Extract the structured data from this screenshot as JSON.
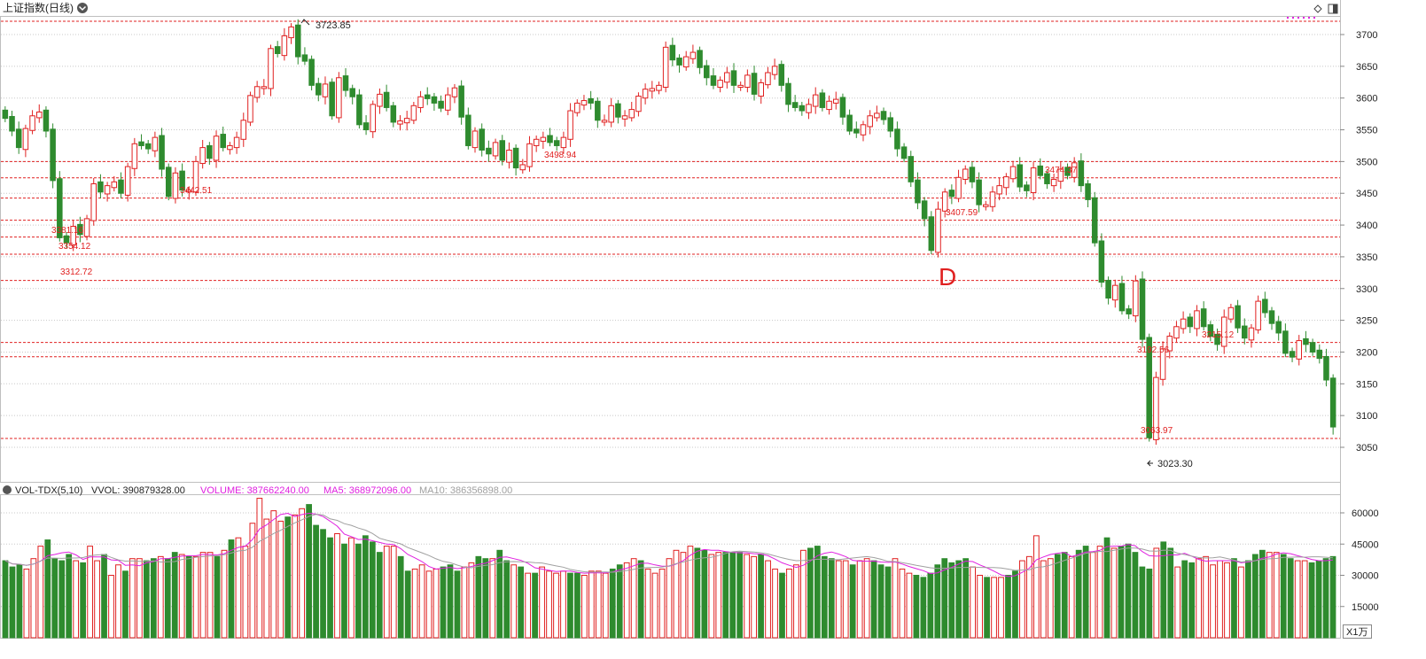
{
  "header": {
    "title": "上证指数(日线)",
    "dropdown_icon": "chevron-down-circle-icon",
    "right_icons": [
      "diamond-icon",
      "panel-toggle-icon"
    ]
  },
  "volume_header": {
    "indicator": "VOL-TDX(5,10)",
    "vvol": "VVOL: 390879328.00",
    "volume": "VOLUME: 387662240.00",
    "ma5": "MA5: 368972096.00",
    "ma10": "MA10: 386356898.00"
  },
  "volume_unit": "X1万",
  "colors": {
    "up": "#e02020",
    "down": "#2e8b2e",
    "ma5": "#e020e0",
    "ma10": "#a0a0a0",
    "support_line": "#e02020",
    "grid": "#c8c8c8"
  },
  "annotations": [
    {
      "text": "3723.85",
      "style": "black"
    },
    {
      "text": "3442.51",
      "style": "red"
    },
    {
      "text": "3381.16",
      "style": "red"
    },
    {
      "text": "3354.12",
      "style": "red"
    },
    {
      "text": "3312.72",
      "style": "red"
    },
    {
      "text": "3498.94",
      "style": "red"
    },
    {
      "text": "3407.59",
      "style": "red"
    },
    {
      "text": "3474.37",
      "style": "red"
    },
    {
      "text": "3192.56",
      "style": "red"
    },
    {
      "text": "3215.12",
      "style": "red"
    },
    {
      "text": "3063.97",
      "style": "red"
    },
    {
      "text": "3023.30",
      "style": "black"
    }
  ],
  "marker_label": "D",
  "chart_data": [
    {
      "type": "candlestick",
      "title": "上证指数(日线)",
      "ylim": [
        3000,
        3720
      ],
      "y_ticks": [
        3050,
        3100,
        3150,
        3200,
        3250,
        3300,
        3350,
        3400,
        3450,
        3500,
        3550,
        3600,
        3650,
        3700
      ],
      "support_lines": [
        3723.85,
        3500,
        3474.37,
        3442.51,
        3407.59,
        3381.16,
        3354.12,
        3312.72,
        3215.12,
        3192.56,
        3063.97
      ],
      "grid": true,
      "closes": [
        3568,
        3548,
        3522,
        3552,
        3572,
        3578,
        3548,
        3470,
        3380,
        3372,
        3398,
        3385,
        3410,
        3465,
        3452,
        3462,
        3468,
        3450,
        3492,
        3528,
        3525,
        3520,
        3538,
        3488,
        3445,
        3482,
        3455,
        3455,
        3500,
        3522,
        3505,
        3540,
        3522,
        3525,
        3538,
        3565,
        3604,
        3618,
        3618,
        3678,
        3670,
        3698,
        3712,
        3665,
        3658,
        3620,
        3605,
        3622,
        3572,
        3632,
        3612,
        3602,
        3558,
        3550,
        3590,
        3606,
        3585,
        3562,
        3564,
        3568,
        3588,
        3602,
        3599,
        3592,
        3584,
        3605,
        3616,
        3570,
        3525,
        3548,
        3518,
        3512,
        3530,
        3502,
        3518,
        3490,
        3495,
        3528,
        3535,
        3538,
        3530,
        3525,
        3538,
        3580,
        3592,
        3596,
        3592,
        3565,
        3565,
        3588,
        3570,
        3572,
        3582,
        3603,
        3614,
        3615,
        3620,
        3680,
        3660,
        3652,
        3665,
        3672,
        3648,
        3632,
        3620,
        3628,
        3640,
        3620,
        3620,
        3636,
        3606,
        3624,
        3640,
        3650,
        3620,
        3590,
        3585,
        3580,
        3590,
        3605,
        3585,
        3595,
        3598,
        3570,
        3548,
        3545,
        3558,
        3572,
        3576,
        3566,
        3548,
        3520,
        3505,
        3468,
        3435,
        3410,
        3360,
        3425,
        3452,
        3445,
        3475,
        3488,
        3468,
        3432,
        3432,
        3452,
        3462,
        3476,
        3492,
        3460,
        3454,
        3490,
        3478,
        3465,
        3472,
        3488,
        3478,
        3498,
        3462,
        3440,
        3372,
        3310,
        3285,
        3305,
        3265,
        3260,
        3312,
        3220,
        3065,
        3160,
        3205,
        3225,
        3240,
        3252,
        3240,
        3265,
        3240,
        3225,
        3212,
        3255,
        3270,
        3238,
        3222,
        3238,
        3280,
        3262,
        3245,
        3230,
        3198,
        3192,
        3218,
        3212,
        3200,
        3190,
        3156,
        3082
      ]
    },
    {
      "type": "bar",
      "title": "VOL-TDX(5,10)",
      "ylabel": "X1万",
      "ylim": [
        0,
        70000
      ],
      "y_ticks": [
        15000,
        30000,
        45000,
        60000
      ],
      "series": [
        {
          "name": "VOLUME",
          "values": [
            37000,
            34000,
            35000,
            33000,
            38000,
            44000,
            47000,
            38000,
            37000,
            40000,
            37000,
            36000,
            44000,
            37000,
            40000,
            30000,
            35000,
            32000,
            38000,
            38000,
            37000,
            38000,
            39000,
            38000,
            41000,
            40000,
            39000,
            39000,
            41000,
            41000,
            39000,
            42000,
            47000,
            48000,
            44000,
            55000,
            67000,
            57000,
            61000,
            56000,
            58000,
            59000,
            62000,
            64000,
            54000,
            52000,
            48000,
            50000,
            45000,
            48000,
            45000,
            49000,
            46000,
            41000,
            44000,
            44000,
            39000,
            32000,
            33000,
            35000,
            32000,
            33000,
            34000,
            35000,
            32000,
            34000,
            36000,
            39000,
            38000,
            38000,
            42000,
            37000,
            35000,
            34000,
            31000,
            31000,
            34000,
            32000,
            31000,
            32000,
            31000,
            31000,
            30000,
            32000,
            32000,
            31000,
            33000,
            35000,
            36000,
            38000,
            37000,
            33000,
            31000,
            33000,
            38000,
            42000,
            41000,
            44000,
            43000,
            42000,
            40000,
            41000,
            41000,
            41000,
            41000,
            40000,
            39000,
            40000,
            37000,
            33000,
            31000,
            33000,
            35000,
            42000,
            43000,
            44000,
            39000,
            38000,
            37000,
            37000,
            35000,
            37000,
            38000,
            37000,
            35000,
            34000,
            38000,
            33000,
            31000,
            30000,
            29000,
            31000,
            35000,
            38000,
            36000,
            37000,
            38000,
            34000,
            30000,
            29000,
            29000,
            29000,
            30000,
            32000,
            37000,
            39000,
            49000,
            37000,
            38000,
            40000,
            41000,
            39000,
            42000,
            44000,
            41000,
            44000,
            48000,
            43000,
            44000,
            45000,
            41000,
            34000,
            33000,
            43000,
            46000,
            43000,
            34000,
            37000,
            36000,
            38000,
            39000,
            35000,
            37000,
            36000,
            38000,
            34000,
            37000,
            40000,
            42000,
            41000,
            41000,
            40000,
            38000,
            37000,
            37000,
            36000,
            37000,
            38000,
            39000
          ]
        },
        {
          "name": "MA5",
          "values": []
        },
        {
          "name": "MA10",
          "values": []
        }
      ]
    }
  ]
}
